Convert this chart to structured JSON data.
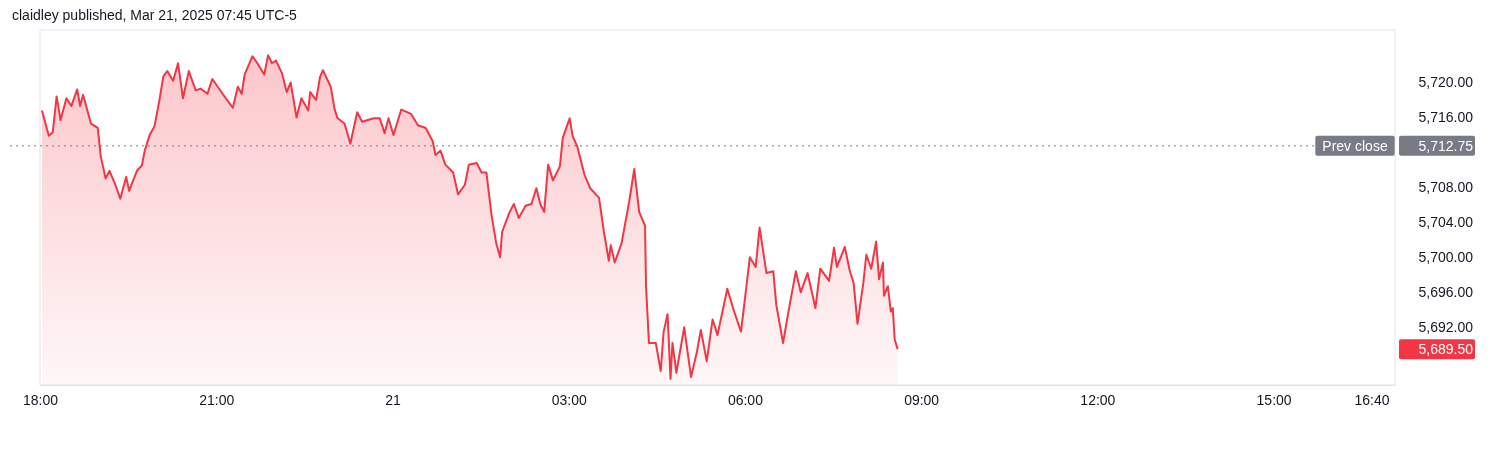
{
  "chart_data": {
    "type": "area",
    "title": "claidley published, Mar 21, 2025 07:45 UTC-5",
    "x": [
      "2025-03-20T18:02",
      "2025-03-20T18:09",
      "2025-03-20T18:13",
      "2025-03-20T18:17",
      "2025-03-20T18:21",
      "2025-03-20T18:27",
      "2025-03-20T18:32",
      "2025-03-20T18:38",
      "2025-03-20T18:41",
      "2025-03-20T18:44",
      "2025-03-20T18:52",
      "2025-03-20T18:59",
      "2025-03-20T19:02",
      "2025-03-20T19:07",
      "2025-03-20T19:11",
      "2025-03-20T19:17",
      "2025-03-20T19:22",
      "2025-03-20T19:28",
      "2025-03-20T19:31",
      "2025-03-20T19:39",
      "2025-03-20T19:44",
      "2025-03-20T19:47",
      "2025-03-20T19:52",
      "2025-03-20T19:57",
      "2025-03-20T20:02",
      "2025-03-20T20:06",
      "2025-03-20T20:10",
      "2025-03-20T20:16",
      "2025-03-20T20:21",
      "2025-03-20T20:26",
      "2025-03-20T20:32",
      "2025-03-20T20:39",
      "2025-03-20T20:44",
      "2025-03-20T20:51",
      "2025-03-20T20:56",
      "2025-03-20T21:01",
      "2025-03-20T21:11",
      "2025-03-20T21:17",
      "2025-03-20T21:22",
      "2025-03-20T21:26",
      "2025-03-20T21:29",
      "2025-03-20T21:37",
      "2025-03-20T21:42",
      "2025-03-20T21:49",
      "2025-03-20T21:53",
      "2025-03-20T21:57",
      "2025-03-20T22:01",
      "2025-03-20T22:07",
      "2025-03-20T22:12",
      "2025-03-20T22:16",
      "2025-03-20T22:22",
      "2025-03-20T22:27",
      "2025-03-20T22:34",
      "2025-03-20T22:36",
      "2025-03-20T22:42",
      "2025-03-20T22:46",
      "2025-03-20T22:49",
      "2025-03-20T22:57",
      "2025-03-20T23:01",
      "2025-03-20T23:04",
      "2025-03-20T23:11",
      "2025-03-20T23:17",
      "2025-03-20T23:24",
      "2025-03-20T23:29",
      "2025-03-20T23:41",
      "2025-03-20T23:47",
      "2025-03-20T23:52",
      "2025-03-20T23:56",
      "2025-03-21T00:01",
      "2025-03-21T00:09",
      "2025-03-21T00:19",
      "2025-03-21T00:26",
      "2025-03-21T00:34",
      "2025-03-21T00:41",
      "2025-03-21T00:44",
      "2025-03-21T00:49",
      "2025-03-21T00:54",
      "2025-03-21T01:02",
      "2025-03-21T01:07",
      "2025-03-21T01:14",
      "2025-03-21T01:18",
      "2025-03-21T01:26",
      "2025-03-21T01:31",
      "2025-03-21T01:36",
      "2025-03-21T01:41",
      "2025-03-21T01:46",
      "2025-03-21T01:50",
      "2025-03-21T01:52",
      "2025-03-21T01:59",
      "2025-03-21T02:04",
      "2025-03-21T02:09",
      "2025-03-21T02:16",
      "2025-03-21T02:22",
      "2025-03-21T02:27",
      "2025-03-21T02:31",
      "2025-03-21T02:35",
      "2025-03-21T02:39",
      "2025-03-21T02:44",
      "2025-03-21T02:51",
      "2025-03-21T02:54",
      "2025-03-21T03:01",
      "2025-03-21T03:04",
      "2025-03-21T03:09",
      "2025-03-21T03:16",
      "2025-03-21T03:22",
      "2025-03-21T03:31",
      "2025-03-21T03:36",
      "2025-03-21T03:41",
      "2025-03-21T03:43",
      "2025-03-21T03:47",
      "2025-03-21T03:54",
      "2025-03-21T04:02",
      "2025-03-21T04:07",
      "2025-03-21T04:12",
      "2025-03-21T04:18",
      "2025-03-21T04:19",
      "2025-03-21T04:22",
      "2025-03-21T04:29",
      "2025-03-21T04:34",
      "2025-03-21T04:37",
      "2025-03-21T04:41",
      "2025-03-21T04:44",
      "2025-03-21T04:46",
      "2025-03-21T04:50",
      "2025-03-21T04:58",
      "2025-03-21T05:05",
      "2025-03-21T05:11",
      "2025-03-21T05:15",
      "2025-03-21T05:21",
      "2025-03-21T05:27",
      "2025-03-21T05:32",
      "2025-03-21T05:42",
      "2025-03-21T05:49",
      "2025-03-21T05:56",
      "2025-03-21T06:02",
      "2025-03-21T06:05",
      "2025-03-21T06:11",
      "2025-03-21T06:15",
      "2025-03-21T06:22",
      "2025-03-21T06:29",
      "2025-03-21T06:32",
      "2025-03-21T06:39",
      "2025-03-21T06:44",
      "2025-03-21T06:52",
      "2025-03-21T06:57",
      "2025-03-21T07:04",
      "2025-03-21T07:12",
      "2025-03-21T07:17",
      "2025-03-21T07:26",
      "2025-03-21T07:31",
      "2025-03-21T07:34",
      "2025-03-21T07:42",
      "2025-03-21T07:47",
      "2025-03-21T07:51",
      "2025-03-21T07:55",
      "2025-03-21T08:01",
      "2025-03-21T08:04",
      "2025-03-21T08:09",
      "2025-03-21T08:14",
      "2025-03-21T08:17",
      "2025-03-21T08:21",
      "2025-03-21T08:22",
      "2025-03-21T08:26",
      "2025-03-21T08:29",
      "2025-03-21T08:31",
      "2025-03-21T08:33",
      "2025-03-21T08:36"
    ],
    "series": [
      {
        "color": "#f23645",
        "values": [
          5716.8,
          5713.9,
          5714.3,
          5718.4,
          5715.7,
          5718.2,
          5717.3,
          5719.2,
          5717.3,
          5718.6,
          5715.3,
          5714.8,
          5711.6,
          5709.0,
          5709.9,
          5708.3,
          5706.7,
          5709.2,
          5707.6,
          5709.9,
          5710.5,
          5712.2,
          5714.0,
          5715.0,
          5718.0,
          5720.7,
          5721.3,
          5720.2,
          5722.2,
          5718.2,
          5721.3,
          5719.1,
          5719.3,
          5718.7,
          5720.4,
          5719.6,
          5718.0,
          5717.1,
          5719.5,
          5718.7,
          5720.9,
          5723.0,
          5722.2,
          5720.9,
          5723.1,
          5722.2,
          5722.5,
          5721.1,
          5718.9,
          5720.0,
          5716.0,
          5718.2,
          5716.8,
          5718.9,
          5718.0,
          5720.6,
          5721.4,
          5719.5,
          5716.9,
          5715.9,
          5715.3,
          5713.0,
          5716.6,
          5715.5,
          5715.9,
          5715.9,
          5714.2,
          5715.9,
          5714.0,
          5716.9,
          5716.4,
          5715.1,
          5714.8,
          5713.3,
          5711.7,
          5712.2,
          5710.6,
          5709.7,
          5707.2,
          5708.3,
          5710.6,
          5710.8,
          5709.7,
          5709.7,
          5705.0,
          5701.6,
          5700.0,
          5702.9,
          5705.0,
          5706.1,
          5704.5,
          5705.9,
          5706.1,
          5707.9,
          5706.1,
          5705.2,
          5710.6,
          5708.8,
          5710.4,
          5713.7,
          5715.9,
          5713.9,
          5712.6,
          5709.5,
          5707.9,
          5706.8,
          5702.9,
          5699.6,
          5701.4,
          5699.4,
          5701.6,
          5706.5,
          5710.1,
          5705.2,
          5703.6,
          5696.7,
          5690.2,
          5690.2,
          5687.0,
          5691.5,
          5693.5,
          5686.1,
          5690.2,
          5686.8,
          5692.0,
          5686.3,
          5689.2,
          5691.7,
          5688.1,
          5692.9,
          5691.1,
          5696.4,
          5693.8,
          5691.5,
          5697.1,
          5700.0,
          5698.9,
          5703.4,
          5698.2,
          5698.4,
          5694.6,
          5690.2,
          5693.5,
          5698.4,
          5696.0,
          5698.2,
          5694.2,
          5698.7,
          5697.3,
          5701.1,
          5698.9,
          5701.2,
          5698.5,
          5697.1,
          5692.4,
          5697.1,
          5700.3,
          5698.7,
          5701.8,
          5697.5,
          5699.4,
          5695.6,
          5696.7,
          5693.8,
          5694.2,
          5690.6,
          5689.5
        ]
      }
    ],
    "xlim": [
      "2025-03-20T18:00",
      "2025-03-21T17:04"
    ],
    "xticks": [
      {
        "value": "2025-03-20T18:00",
        "label": "18:00"
      },
      {
        "value": "2025-03-20T21:00",
        "label": "21:00"
      },
      {
        "value": "2025-03-21T00:00",
        "label": "21"
      },
      {
        "value": "2025-03-21T03:00",
        "label": "03:00"
      },
      {
        "value": "2025-03-21T06:00",
        "label": "06:00"
      },
      {
        "value": "2025-03-21T09:00",
        "label": "09:00"
      },
      {
        "value": "2025-03-21T12:00",
        "label": "12:00"
      },
      {
        "value": "2025-03-21T15:00",
        "label": "15:00"
      },
      {
        "value": "2025-03-21T16:40",
        "label": "16:40"
      }
    ],
    "ylim": [
      5685.4,
      5726
    ],
    "yticks": [
      {
        "value": 5689.5,
        "label": "5,689.50"
      },
      {
        "value": 5692,
        "label": "5,692.00"
      },
      {
        "value": 5696,
        "label": "5,696.00"
      },
      {
        "value": 5700,
        "label": "5,700.00"
      },
      {
        "value": 5704,
        "label": "5,704.00"
      },
      {
        "value": 5708,
        "label": "5,708.00"
      },
      {
        "value": 5712.75,
        "label": "5,712.75"
      },
      {
        "value": 5716,
        "label": "5,716.00"
      },
      {
        "value": 5720,
        "label": "5,720.00"
      }
    ],
    "ref_lines": [
      {
        "axis": "y",
        "value": 5712.75,
        "label": "Prev close",
        "color": "#787b86",
        "line_style": "dotted"
      }
    ],
    "grid": false
  }
}
